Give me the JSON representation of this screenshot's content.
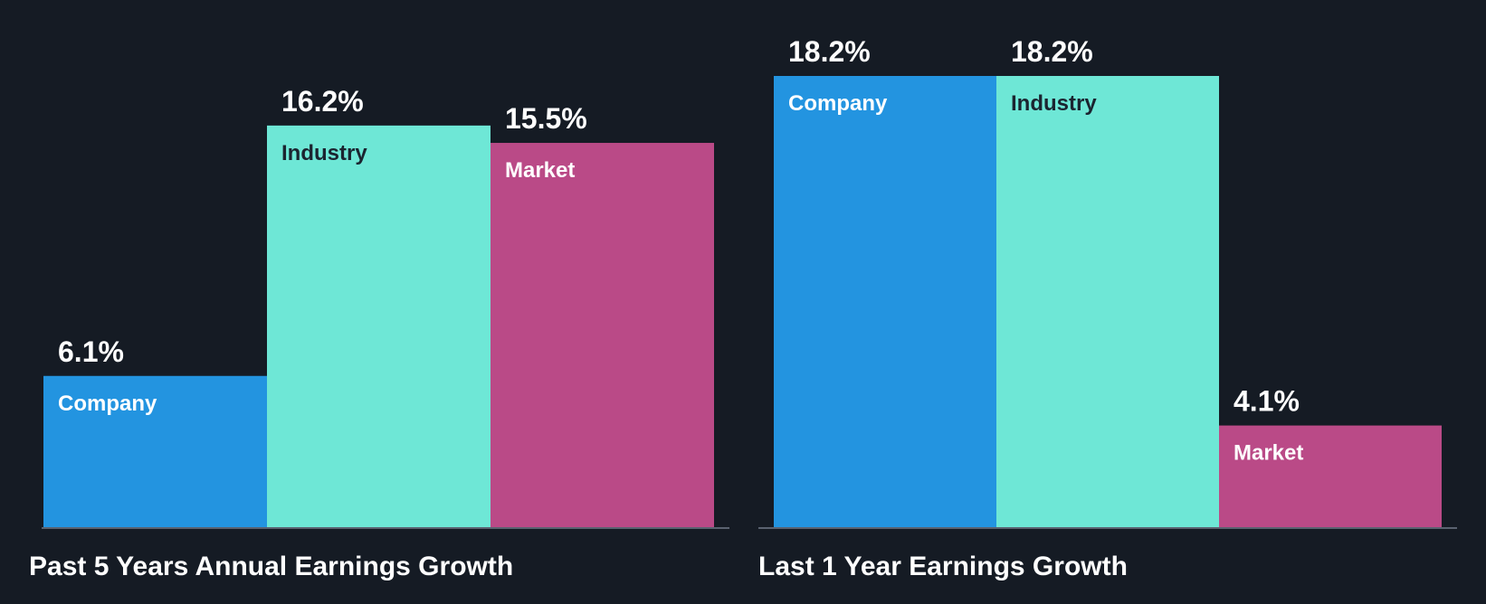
{
  "chart_data": [
    {
      "type": "bar",
      "title": "Past 5 Years Annual Earnings Growth",
      "categories": [
        "Company",
        "Industry",
        "Market"
      ],
      "values": [
        6.1,
        16.2,
        15.5
      ],
      "value_labels": [
        "6.1%",
        "16.2%",
        "15.5%"
      ],
      "ylim": [
        0,
        18.2
      ],
      "colors": [
        "#2394e0",
        "#6ee7d6",
        "#ba4a87"
      ],
      "label_colors": [
        "#ffffff",
        "#1b2430",
        "#ffffff"
      ]
    },
    {
      "type": "bar",
      "title": "Last 1 Year Earnings Growth",
      "categories": [
        "Company",
        "Industry",
        "Market"
      ],
      "values": [
        18.2,
        18.2,
        4.1
      ],
      "value_labels": [
        "18.2%",
        "18.2%",
        "4.1%"
      ],
      "ylim": [
        0,
        18.2
      ],
      "colors": [
        "#2394e0",
        "#6ee7d6",
        "#ba4a87"
      ],
      "label_colors": [
        "#ffffff",
        "#1b2430",
        "#ffffff"
      ]
    }
  ],
  "colors": {
    "background": "#151b24",
    "axis": "#5a6270"
  }
}
